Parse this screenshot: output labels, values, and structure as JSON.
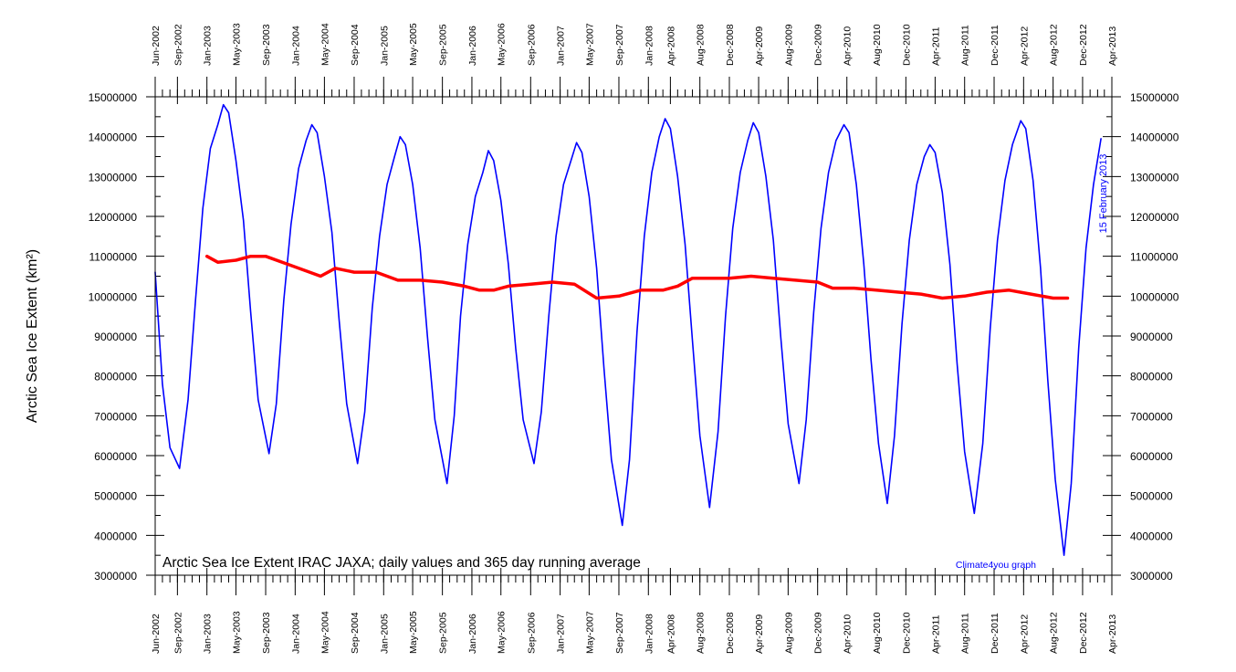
{
  "chart_data": {
    "type": "line",
    "title": "",
    "annotation": "Arctic Sea Ice Extent IRAC JAXA; daily values and 365 day running average",
    "credit": "Climate4you graph",
    "date_stamp": "15 February 2013",
    "xlabel": "",
    "ylabel": "Arctic Sea Ice Extent (km²)",
    "ylim": [
      3000000,
      15000000
    ],
    "xlim": [
      "2002-06-01",
      "2013-04-01"
    ],
    "y_ticks": [
      "3000000",
      "4000000",
      "5000000",
      "6000000",
      "7000000",
      "8000000",
      "9000000",
      "10000000",
      "11000000",
      "12000000",
      "13000000",
      "14000000",
      "15000000"
    ],
    "x_ticks": [
      {
        "label": "Jun-2002",
        "date": "2002-06-01"
      },
      {
        "label": "Sep-2002",
        "date": "2002-09-01"
      },
      {
        "label": "Jan-2003",
        "date": "2003-01-01"
      },
      {
        "label": "May-2003",
        "date": "2003-05-01"
      },
      {
        "label": "Sep-2003",
        "date": "2003-09-01"
      },
      {
        "label": "Jan-2004",
        "date": "2004-01-01"
      },
      {
        "label": "May-2004",
        "date": "2004-05-01"
      },
      {
        "label": "Sep-2004",
        "date": "2004-09-01"
      },
      {
        "label": "Jan-2005",
        "date": "2005-01-01"
      },
      {
        "label": "May-2005",
        "date": "2005-05-01"
      },
      {
        "label": "Sep-2005",
        "date": "2005-09-01"
      },
      {
        "label": "Jan-2006",
        "date": "2006-01-01"
      },
      {
        "label": "May-2006",
        "date": "2006-05-01"
      },
      {
        "label": "Sep-2006",
        "date": "2006-09-01"
      },
      {
        "label": "Jan-2007",
        "date": "2007-01-01"
      },
      {
        "label": "May-2007",
        "date": "2007-05-01"
      },
      {
        "label": "Sep-2007",
        "date": "2007-09-01"
      },
      {
        "label": "Jan-2008",
        "date": "2008-01-01"
      },
      {
        "label": "Apr-2008",
        "date": "2008-04-01"
      },
      {
        "label": "Aug-2008",
        "date": "2008-08-01"
      },
      {
        "label": "Dec-2008",
        "date": "2008-12-01"
      },
      {
        "label": "Apr-2009",
        "date": "2009-04-01"
      },
      {
        "label": "Aug-2009",
        "date": "2009-08-01"
      },
      {
        "label": "Dec-2009",
        "date": "2009-12-01"
      },
      {
        "label": "Apr-2010",
        "date": "2010-04-01"
      },
      {
        "label": "Aug-2010",
        "date": "2010-08-01"
      },
      {
        "label": "Dec-2010",
        "date": "2010-12-01"
      },
      {
        "label": "Apr-2011",
        "date": "2011-04-01"
      },
      {
        "label": "Aug-2011",
        "date": "2011-08-01"
      },
      {
        "label": "Dec-2011",
        "date": "2011-12-01"
      },
      {
        "label": "Apr-2012",
        "date": "2012-04-01"
      },
      {
        "label": "Aug-2012",
        "date": "2012-08-01"
      },
      {
        "label": "Dec-2012",
        "date": "2012-12-01"
      },
      {
        "label": "Apr-2013",
        "date": "2013-04-01"
      }
    ],
    "grid": false,
    "series": [
      {
        "label": "daily values",
        "color": "#0000ff",
        "points": [
          [
            "2002-06-01",
            10600000
          ],
          [
            "2002-07-01",
            7800000
          ],
          [
            "2002-08-01",
            6200000
          ],
          [
            "2002-09-10",
            5680000
          ],
          [
            "2002-10-15",
            7400000
          ],
          [
            "2002-11-15",
            9900000
          ],
          [
            "2002-12-15",
            12200000
          ],
          [
            "2003-01-15",
            13700000
          ],
          [
            "2003-02-15",
            14300000
          ],
          [
            "2003-03-10",
            14800000
          ],
          [
            "2003-04-01",
            14600000
          ],
          [
            "2003-05-01",
            13400000
          ],
          [
            "2003-06-01",
            11900000
          ],
          [
            "2003-07-01",
            9600000
          ],
          [
            "2003-08-01",
            7400000
          ],
          [
            "2003-09-15",
            6050000
          ],
          [
            "2003-10-15",
            7300000
          ],
          [
            "2003-11-15",
            9900000
          ],
          [
            "2003-12-15",
            11800000
          ],
          [
            "2004-01-15",
            13200000
          ],
          [
            "2004-02-15",
            13900000
          ],
          [
            "2004-03-10",
            14300000
          ],
          [
            "2004-04-01",
            14100000
          ],
          [
            "2004-05-01",
            13000000
          ],
          [
            "2004-06-01",
            11600000
          ],
          [
            "2004-07-01",
            9400000
          ],
          [
            "2004-08-01",
            7300000
          ],
          [
            "2004-09-15",
            5800000
          ],
          [
            "2004-10-15",
            7100000
          ],
          [
            "2004-11-15",
            9700000
          ],
          [
            "2004-12-15",
            11500000
          ],
          [
            "2005-01-15",
            12800000
          ],
          [
            "2005-02-15",
            13500000
          ],
          [
            "2005-03-10",
            14000000
          ],
          [
            "2005-04-01",
            13800000
          ],
          [
            "2005-05-01",
            12800000
          ],
          [
            "2005-06-01",
            11200000
          ],
          [
            "2005-07-01",
            9000000
          ],
          [
            "2005-08-01",
            6900000
          ],
          [
            "2005-09-20",
            5300000
          ],
          [
            "2005-10-20",
            7000000
          ],
          [
            "2005-11-15",
            9500000
          ],
          [
            "2005-12-15",
            11300000
          ],
          [
            "2006-01-15",
            12500000
          ],
          [
            "2006-02-15",
            13100000
          ],
          [
            "2006-03-10",
            13650000
          ],
          [
            "2006-04-01",
            13400000
          ],
          [
            "2006-05-01",
            12400000
          ],
          [
            "2006-06-01",
            10800000
          ],
          [
            "2006-07-01",
            8700000
          ],
          [
            "2006-08-01",
            6900000
          ],
          [
            "2006-09-15",
            5800000
          ],
          [
            "2006-10-15",
            7100000
          ],
          [
            "2006-11-15",
            9500000
          ],
          [
            "2006-12-15",
            11500000
          ],
          [
            "2007-01-15",
            12800000
          ],
          [
            "2007-02-15",
            13400000
          ],
          [
            "2007-03-10",
            13850000
          ],
          [
            "2007-04-01",
            13600000
          ],
          [
            "2007-05-01",
            12500000
          ],
          [
            "2007-06-01",
            10700000
          ],
          [
            "2007-07-01",
            8200000
          ],
          [
            "2007-08-01",
            5900000
          ],
          [
            "2007-09-15",
            4250000
          ],
          [
            "2007-10-15",
            5900000
          ],
          [
            "2007-11-15",
            9100000
          ],
          [
            "2007-12-15",
            11500000
          ],
          [
            "2008-01-15",
            13100000
          ],
          [
            "2008-02-15",
            14000000
          ],
          [
            "2008-03-10",
            14450000
          ],
          [
            "2008-04-01",
            14200000
          ],
          [
            "2008-05-01",
            13000000
          ],
          [
            "2008-06-01",
            11300000
          ],
          [
            "2008-07-01",
            8900000
          ],
          [
            "2008-08-01",
            6500000
          ],
          [
            "2008-09-10",
            4700000
          ],
          [
            "2008-10-15",
            6600000
          ],
          [
            "2008-11-15",
            9500000
          ],
          [
            "2008-12-15",
            11700000
          ],
          [
            "2009-01-15",
            13100000
          ],
          [
            "2009-02-15",
            13900000
          ],
          [
            "2009-03-10",
            14350000
          ],
          [
            "2009-04-01",
            14100000
          ],
          [
            "2009-05-01",
            13000000
          ],
          [
            "2009-06-01",
            11400000
          ],
          [
            "2009-07-01",
            9000000
          ],
          [
            "2009-08-01",
            6800000
          ],
          [
            "2009-09-15",
            5300000
          ],
          [
            "2009-10-15",
            6900000
          ],
          [
            "2009-11-15",
            9600000
          ],
          [
            "2009-12-15",
            11700000
          ],
          [
            "2010-01-15",
            13100000
          ],
          [
            "2010-02-15",
            13900000
          ],
          [
            "2010-03-20",
            14300000
          ],
          [
            "2010-04-10",
            14100000
          ],
          [
            "2010-05-10",
            12800000
          ],
          [
            "2010-06-10",
            10800000
          ],
          [
            "2010-07-10",
            8400000
          ],
          [
            "2010-08-10",
            6300000
          ],
          [
            "2010-09-15",
            4800000
          ],
          [
            "2010-10-15",
            6500000
          ],
          [
            "2010-11-15",
            9300000
          ],
          [
            "2010-12-15",
            11400000
          ],
          [
            "2011-01-15",
            12800000
          ],
          [
            "2011-02-15",
            13500000
          ],
          [
            "2011-03-10",
            13800000
          ],
          [
            "2011-04-01",
            13600000
          ],
          [
            "2011-05-01",
            12600000
          ],
          [
            "2011-06-01",
            10800000
          ],
          [
            "2011-07-01",
            8300000
          ],
          [
            "2011-08-01",
            6100000
          ],
          [
            "2011-09-10",
            4550000
          ],
          [
            "2011-10-15",
            6300000
          ],
          [
            "2011-11-15",
            9200000
          ],
          [
            "2011-12-15",
            11400000
          ],
          [
            "2012-01-15",
            12900000
          ],
          [
            "2012-02-15",
            13800000
          ],
          [
            "2012-03-20",
            14400000
          ],
          [
            "2012-04-10",
            14200000
          ],
          [
            "2012-05-10",
            12900000
          ],
          [
            "2012-06-10",
            10700000
          ],
          [
            "2012-07-10",
            7900000
          ],
          [
            "2012-08-10",
            5400000
          ],
          [
            "2012-09-15",
            3500000
          ],
          [
            "2012-10-15",
            5300000
          ],
          [
            "2012-11-15",
            8700000
          ],
          [
            "2012-12-15",
            11200000
          ],
          [
            "2013-01-15",
            12800000
          ],
          [
            "2013-02-15",
            13950000
          ]
        ]
      },
      {
        "label": "365 day running average",
        "color": "#ff0000",
        "points": [
          [
            "2003-01-01",
            11000000
          ],
          [
            "2003-02-15",
            10850000
          ],
          [
            "2003-05-01",
            10900000
          ],
          [
            "2003-07-01",
            11000000
          ],
          [
            "2003-09-01",
            11000000
          ],
          [
            "2003-12-01",
            10800000
          ],
          [
            "2004-03-01",
            10600000
          ],
          [
            "2004-04-15",
            10500000
          ],
          [
            "2004-06-15",
            10700000
          ],
          [
            "2004-09-01",
            10600000
          ],
          [
            "2004-12-01",
            10600000
          ],
          [
            "2005-03-01",
            10400000
          ],
          [
            "2005-06-01",
            10400000
          ],
          [
            "2005-09-01",
            10350000
          ],
          [
            "2005-12-01",
            10250000
          ],
          [
            "2006-02-01",
            10150000
          ],
          [
            "2006-04-01",
            10150000
          ],
          [
            "2006-06-01",
            10250000
          ],
          [
            "2006-09-01",
            10300000
          ],
          [
            "2006-12-01",
            10350000
          ],
          [
            "2007-03-01",
            10300000
          ],
          [
            "2007-06-01",
            9950000
          ],
          [
            "2007-09-01",
            10000000
          ],
          [
            "2007-12-01",
            10150000
          ],
          [
            "2008-03-01",
            10150000
          ],
          [
            "2008-05-01",
            10250000
          ],
          [
            "2008-07-01",
            10450000
          ],
          [
            "2008-09-01",
            10450000
          ],
          [
            "2008-12-01",
            10450000
          ],
          [
            "2009-03-01",
            10500000
          ],
          [
            "2009-06-01",
            10450000
          ],
          [
            "2009-09-01",
            10400000
          ],
          [
            "2009-12-01",
            10350000
          ],
          [
            "2010-02-01",
            10200000
          ],
          [
            "2010-05-01",
            10200000
          ],
          [
            "2010-08-01",
            10150000
          ],
          [
            "2010-11-01",
            10100000
          ],
          [
            "2011-02-01",
            10050000
          ],
          [
            "2011-05-01",
            9950000
          ],
          [
            "2011-08-01",
            10000000
          ],
          [
            "2011-11-01",
            10100000
          ],
          [
            "2012-02-01",
            10150000
          ],
          [
            "2012-05-01",
            10050000
          ],
          [
            "2012-08-01",
            9950000
          ],
          [
            "2012-09-30",
            9950000
          ]
        ]
      }
    ]
  }
}
